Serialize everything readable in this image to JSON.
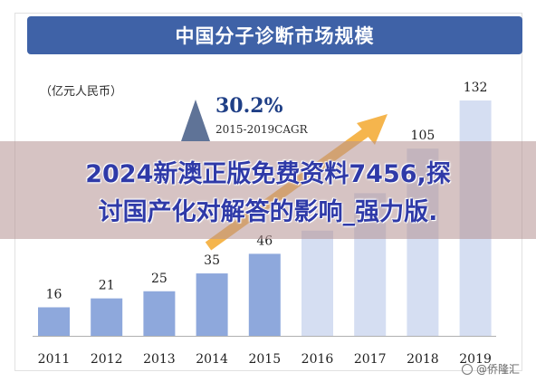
{
  "header": {
    "title": "中国分子诊断市场规模"
  },
  "unit_label": "（亿元人民币）",
  "cagr": {
    "value": "30.2%",
    "label": "2015-2019CAGR"
  },
  "overlay": {
    "line1": "2024新澳正版免费资料7456,探",
    "line2": "讨国产化对解答的影响_强力版."
  },
  "watermark": "@侨隆汇",
  "colors": {
    "title_bar": "#3f62a7",
    "bar_actual": "#8ea8dc",
    "bar_forecast": "#d5def2",
    "arrow": "#f5b54d",
    "triangle": "#5f7397"
  },
  "chart_data": {
    "type": "bar",
    "title": "中国分子诊断市场规模",
    "ylabel": "（亿元人民币）",
    "categories": [
      "2011",
      "2012",
      "2013",
      "2014",
      "2015",
      "2016",
      "2017",
      "2018",
      "2019"
    ],
    "values": [
      16,
      21,
      25,
      35,
      46,
      59,
      80,
      105,
      132
    ],
    "data_labels": [
      "16",
      "21",
      "25",
      "35",
      "46",
      "",
      "",
      "105",
      "132"
    ],
    "forecast_from_index": 5,
    "ylim": [
      0,
      140
    ],
    "grid": false,
    "annotation": "30.2% 2015-2019CAGR"
  }
}
